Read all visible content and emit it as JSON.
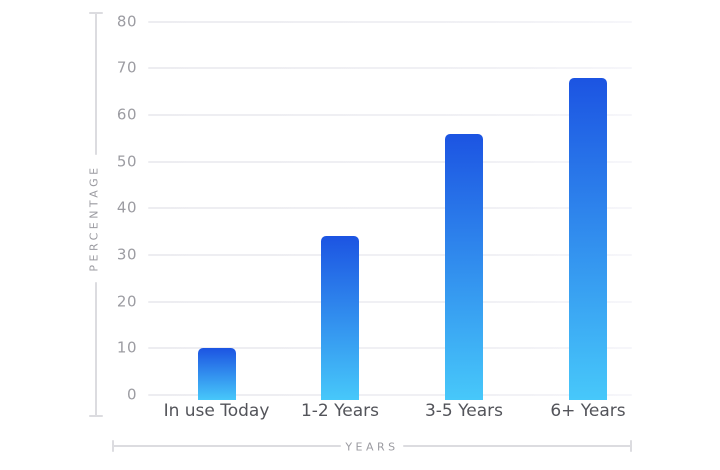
{
  "chart_data": {
    "type": "bar",
    "categories": [
      "In use Today",
      "1-2 Years",
      "3-5 Years",
      "6+ Years"
    ],
    "values": [
      10,
      34,
      56,
      68
    ],
    "title": "",
    "xlabel": "YEARS",
    "ylabel": "PERCENTAGE",
    "ylim": [
      0,
      80
    ],
    "yticks": [
      0,
      10,
      20,
      30,
      40,
      50,
      60,
      70,
      80
    ],
    "grid": true,
    "legend": "none",
    "bar_color_top": "#1C54E2",
    "bar_color_bottom": "#47C8FA",
    "gridline_color": "#f0f0f4",
    "axis_line_color": "#dcdce0",
    "tick_label_color": "#9c9ca2",
    "category_label_color": "#53545a",
    "axis_title_color": "#9b9ba1"
  }
}
